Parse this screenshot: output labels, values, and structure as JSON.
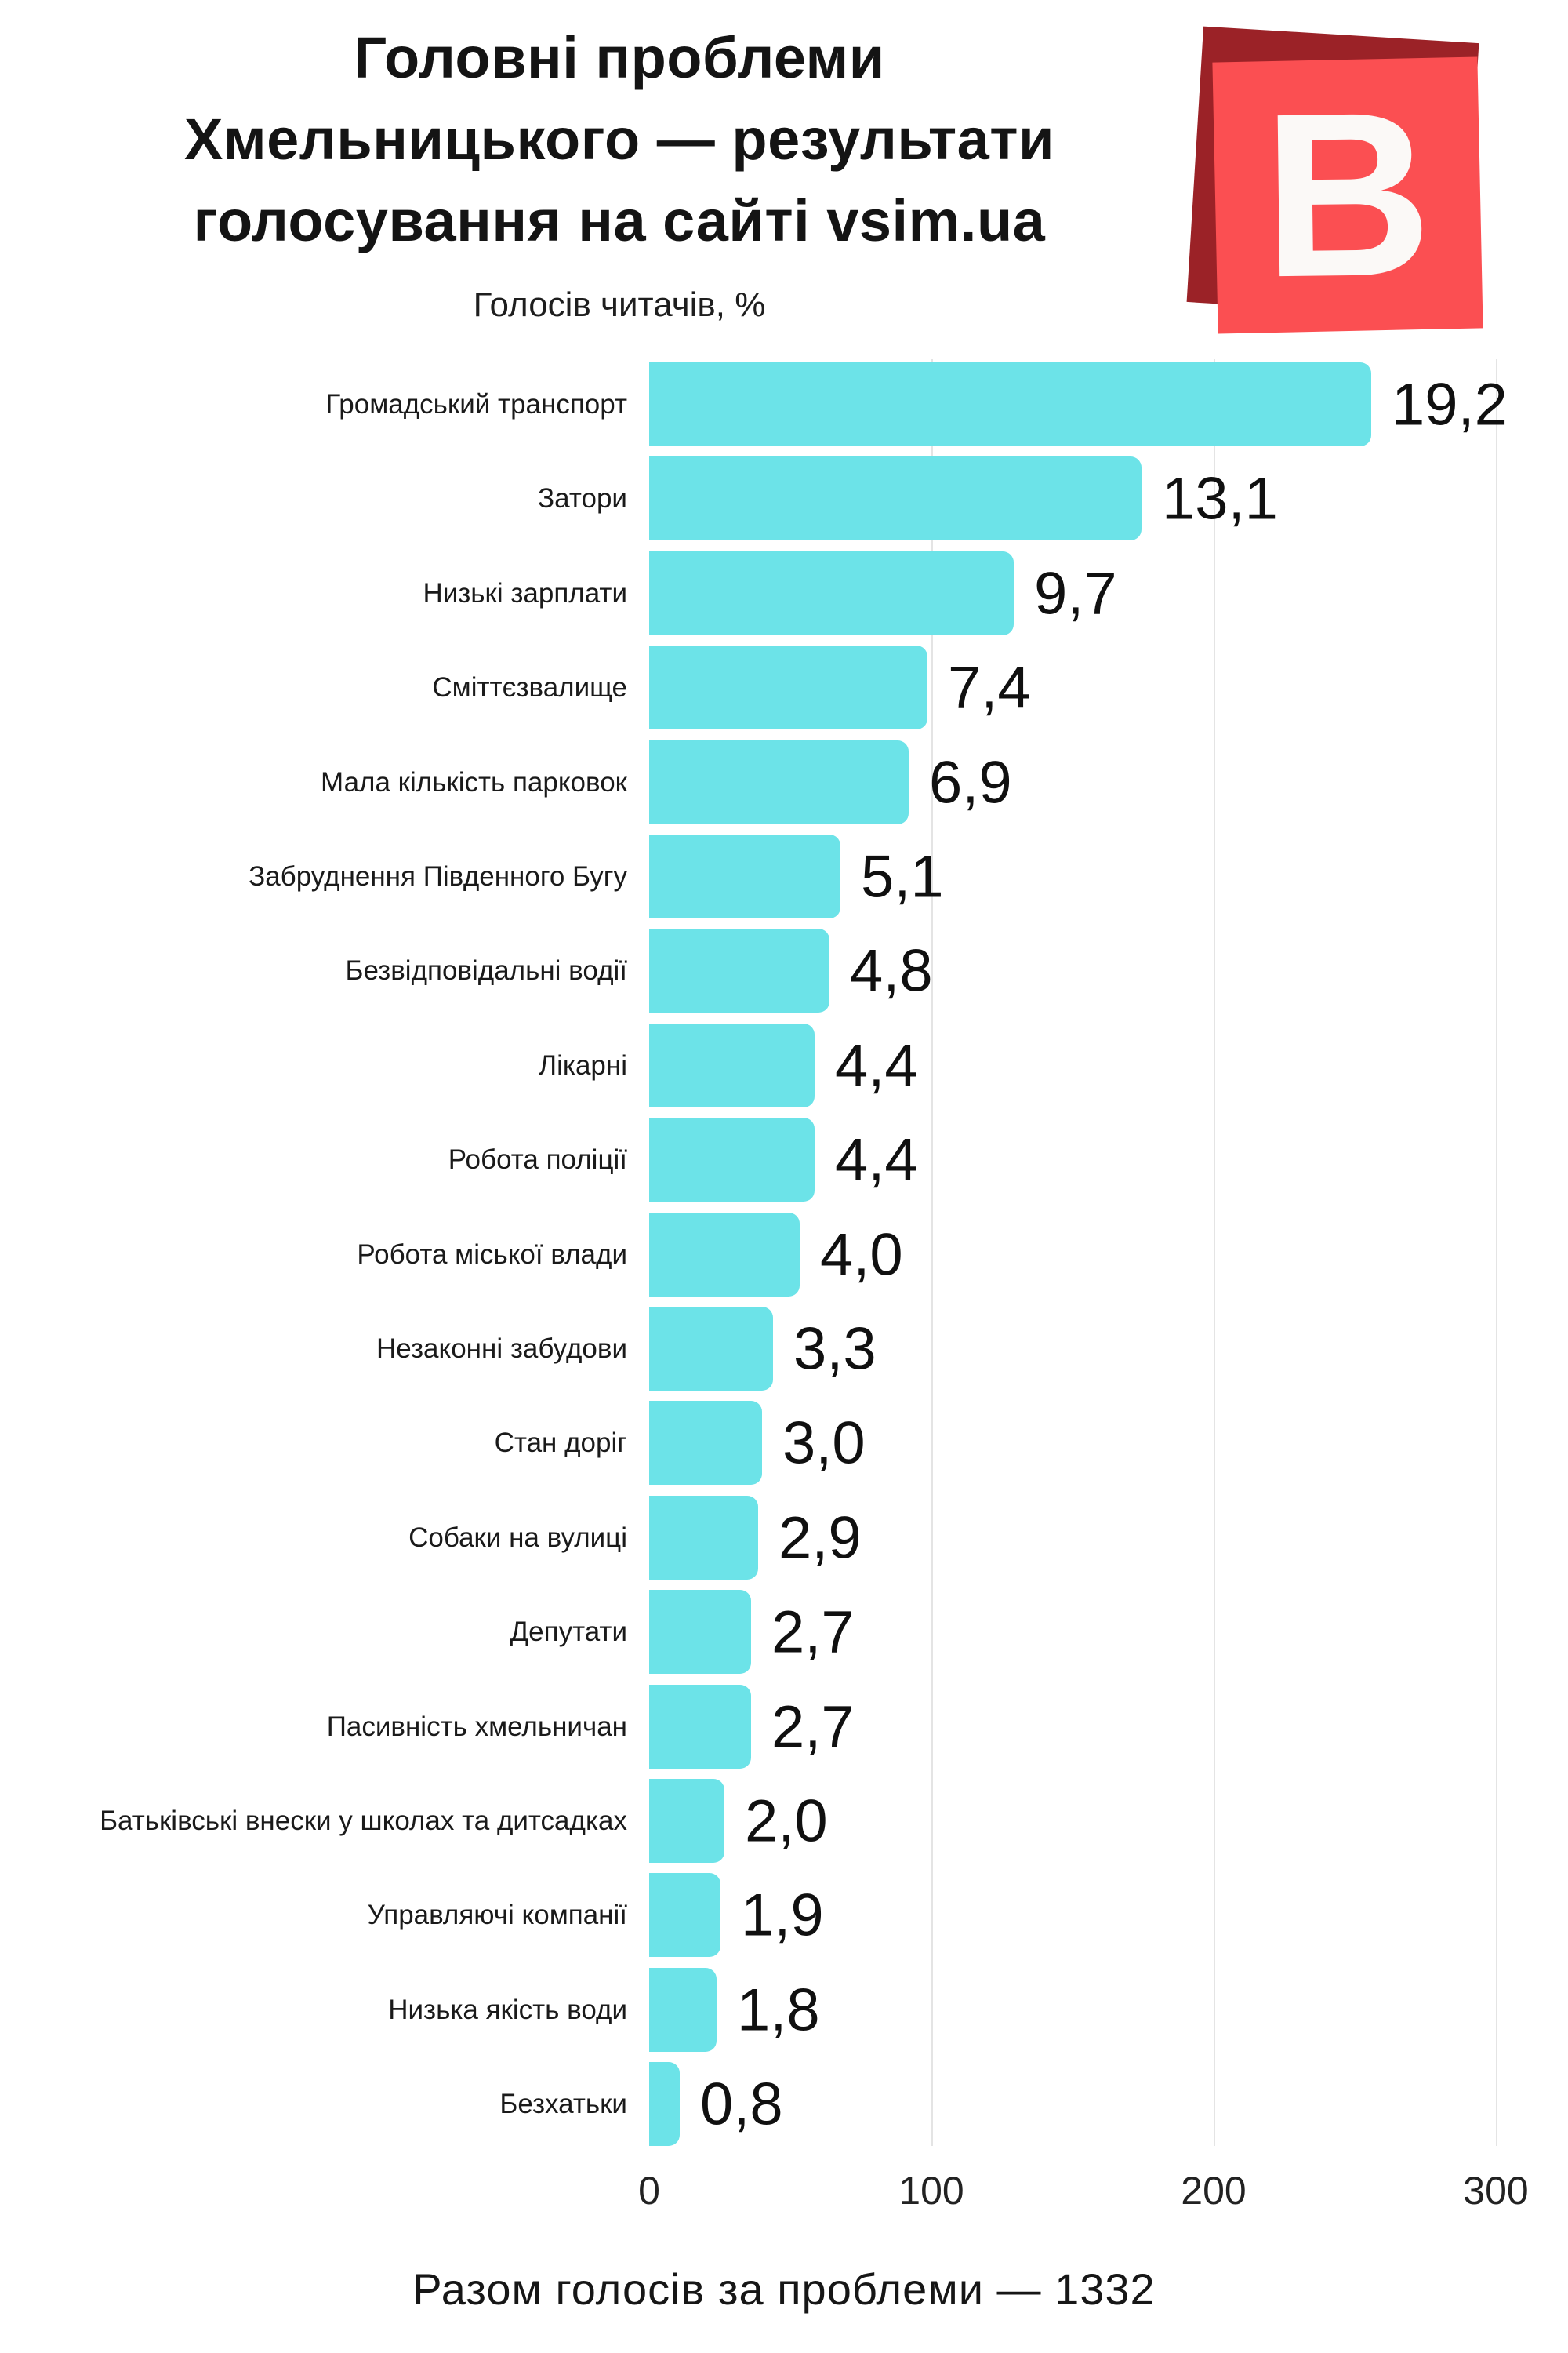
{
  "header": {
    "title_lines": [
      "Головні проблеми",
      "Хмельницького — результати",
      "голосування на сайті vsim.ua"
    ],
    "subtitle": "Голосів читачів, %",
    "logo_letter": "В"
  },
  "chart_data": {
    "type": "bar",
    "orientation": "horizontal",
    "title": "Головні проблеми Хмельницького — результати голосування на сайті vsim.ua",
    "subtitle": "Голосів читачів, %",
    "categories": [
      "Громадський транспорт",
      "Затори",
      "Низькі зарплати",
      "Сміттєзвалище",
      "Мала кількість парковок",
      "Забруднення Південного Бугу",
      "Безвідповідальні водії",
      "Лікарні",
      "Робота поліції",
      "Робота міської влади",
      "Незаконні забудови",
      "Стан доріг",
      "Собаки на вулиці",
      "Депутати",
      "Пасивність хмельничан",
      "Батьківські внески у школах та дитсадках",
      "Управляючі компанії",
      "Низька якість води",
      "Безхатьки"
    ],
    "percent_labels": [
      "19,2",
      "13,1",
      "9,7",
      "7,4",
      "6,9",
      "5,1",
      "4,8",
      "4,4",
      "4,4",
      "4,0",
      "3,3",
      "3,0",
      "2,9",
      "2,7",
      "2,7",
      "2,0",
      "1,9",
      "1,8",
      "0,8"
    ],
    "percent_values": [
      19.2,
      13.1,
      9.7,
      7.4,
      6.9,
      5.1,
      4.8,
      4.4,
      4.4,
      4.0,
      3.3,
      3.0,
      2.9,
      2.7,
      2.7,
      2.0,
      1.9,
      1.8,
      0.8
    ],
    "votes": [
      255.7,
      174.5,
      129.2,
      98.6,
      91.9,
      67.9,
      63.9,
      58.6,
      58.6,
      53.3,
      44.0,
      40.0,
      38.6,
      36.0,
      36.0,
      26.6,
      25.3,
      24.0,
      10.7
    ],
    "total_votes": 1332,
    "x_ticks": [
      0,
      100,
      200,
      300
    ],
    "xlim": [
      0,
      300
    ],
    "grid": "vertical-light",
    "legend": "none",
    "bar_unit": "votes (labels show percent)"
  },
  "footer": {
    "total_label": "Разом голосів за проблеми — 1332"
  },
  "colors": {
    "bar": "#6ce3e8",
    "logo_front": "#fb4f52",
    "logo_back": "#9b2227",
    "logo_letter": "#fbf9f7",
    "gridline": "#e4e4e4",
    "text": "#1a1a1a"
  }
}
